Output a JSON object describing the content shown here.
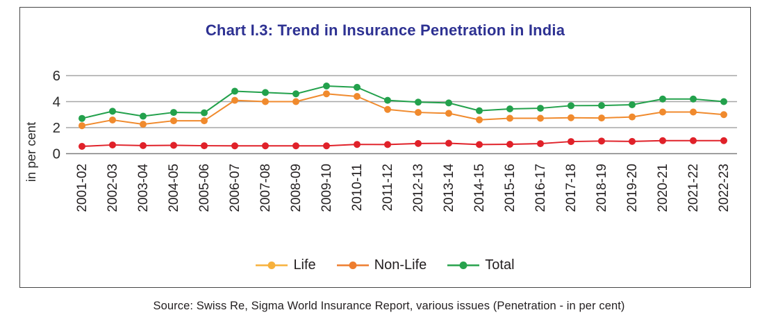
{
  "chart": {
    "title": "Chart I.3: Trend in Insurance Penetration in India",
    "title_color": "#2D3192"
  },
  "chart_data": {
    "type": "line",
    "title": "Chart I.3: Trend in Insurance Penetration in India",
    "xlabel": "",
    "ylabel": "in per cent",
    "ylim": [
      0,
      6
    ],
    "yticks": [
      0,
      2,
      4,
      6
    ],
    "grid": "horizontal-only",
    "legend_position": "bottom",
    "categories": [
      "2001-02",
      "2002-03",
      "2003-04",
      "2004-05",
      "2005-06",
      "2006-07",
      "2007-08",
      "2008-09",
      "2009-10",
      "2010-11",
      "2011-12",
      "2012-13",
      "2013-14",
      "2014-15",
      "2015-16",
      "2016-17",
      "2017-18",
      "2018-19",
      "2019-20",
      "2020-21",
      "2021-22",
      "2022-23"
    ],
    "series": [
      {
        "name": "Life",
        "color": "#F08A2D",
        "legend_color": "#F7B13C",
        "values": [
          2.15,
          2.59,
          2.26,
          2.53,
          2.53,
          4.1,
          4.0,
          4.0,
          4.6,
          4.4,
          3.4,
          3.17,
          3.1,
          2.6,
          2.72,
          2.72,
          2.76,
          2.74,
          2.82,
          3.2,
          3.2,
          3.0
        ]
      },
      {
        "name": "Non-Life",
        "color": "#E02129",
        "legend_color": "#EE7D2E",
        "values": [
          0.56,
          0.67,
          0.62,
          0.64,
          0.61,
          0.6,
          0.6,
          0.6,
          0.6,
          0.71,
          0.7,
          0.78,
          0.8,
          0.7,
          0.72,
          0.77,
          0.93,
          0.97,
          0.94,
          1.0,
          1.0,
          1.0
        ]
      },
      {
        "name": "Total",
        "color": "#23A14C",
        "legend_color": "#27A24C",
        "values": [
          2.71,
          3.26,
          2.88,
          3.17,
          3.14,
          4.8,
          4.7,
          4.6,
          5.2,
          5.1,
          4.1,
          3.96,
          3.9,
          3.3,
          3.44,
          3.49,
          3.69,
          3.7,
          3.76,
          4.2,
          4.2,
          4.0
        ]
      }
    ],
    "axis_text_color": "#231f20",
    "gridline_color": "#a6a6a6",
    "baseline_color": "#7d7d7d"
  },
  "source": {
    "text": "Source: Swiss Re, Sigma World Insurance Report, various issues (Penetration - in per cent)"
  }
}
